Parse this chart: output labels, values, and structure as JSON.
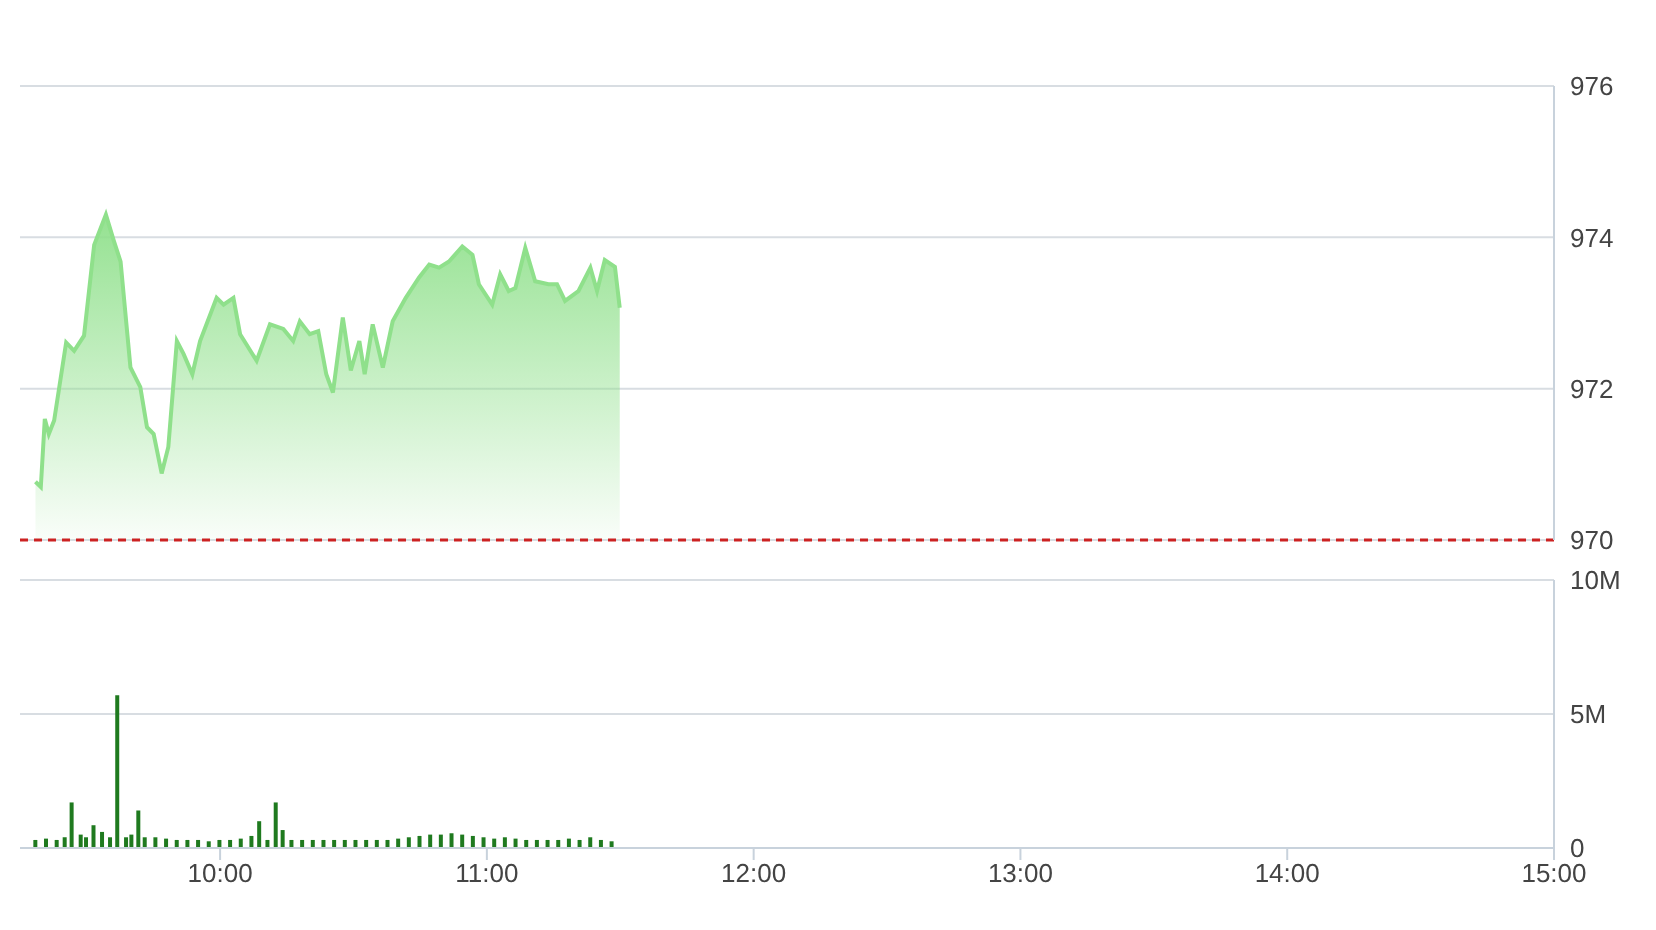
{
  "chart_data": [
    {
      "type": "area",
      "x": [
        9.308,
        9.328,
        9.343,
        9.358,
        9.378,
        9.423,
        9.453,
        9.49,
        9.528,
        9.572,
        9.602,
        9.627,
        9.664,
        9.701,
        9.726,
        9.751,
        9.781,
        9.806,
        9.838,
        9.863,
        9.896,
        9.925,
        9.987,
        10.013,
        10.05,
        10.075,
        10.137,
        10.187,
        10.237,
        10.274,
        10.299,
        10.336,
        10.368,
        10.398,
        10.423,
        10.46,
        10.49,
        10.522,
        10.542,
        10.572,
        10.61,
        10.647,
        10.696,
        10.746,
        10.784,
        10.821,
        10.858,
        10.908,
        10.946,
        10.97,
        11.02,
        11.05,
        11.082,
        11.107,
        11.144,
        11.181,
        11.231,
        11.263,
        11.293,
        11.343,
        11.388,
        11.413,
        11.442,
        11.48,
        11.498
      ],
      "series": [
        {
          "color": "#8fe08b",
          "values": [
            970.77,
            970.7,
            971.6,
            971.4,
            971.58,
            972.61,
            972.5,
            972.7,
            973.9,
            974.3,
            973.95,
            973.68,
            972.28,
            972.02,
            971.49,
            971.4,
            970.88,
            971.23,
            972.63,
            972.46,
            972.19,
            972.63,
            973.2,
            973.11,
            973.2,
            972.72,
            972.37,
            972.85,
            972.79,
            972.63,
            972.89,
            972.72,
            972.76,
            972.19,
            971.95,
            972.94,
            972.24,
            972.63,
            972.19,
            972.85,
            972.28,
            972.89,
            973.2,
            973.47,
            973.64,
            973.6,
            973.68,
            973.88,
            973.77,
            973.38,
            973.11,
            973.51,
            973.29,
            973.33,
            973.86,
            973.42,
            973.38,
            973.38,
            973.16,
            973.29,
            973.6,
            973.29,
            973.7,
            973.61,
            973.07
          ]
        }
      ],
      "xlim": [
        9.25,
        15
      ],
      "ylim": [
        970,
        976
      ],
      "yticks": [
        970,
        972,
        974,
        976
      ],
      "grid": "y",
      "tick_labels": "y",
      "ref_lines": [
        {
          "axis": "y",
          "value": 970,
          "color": "#cc2222",
          "line_style": "dashed"
        }
      ]
    },
    {
      "type": "bar",
      "x": [
        9.31,
        9.35,
        9.39,
        9.42,
        9.446,
        9.48,
        9.5,
        9.528,
        9.56,
        9.59,
        9.617,
        9.65,
        9.67,
        9.696,
        9.72,
        9.76,
        9.8,
        9.84,
        9.88,
        9.92,
        9.96,
        10.0,
        10.04,
        10.08,
        10.12,
        10.149,
        10.18,
        10.211,
        10.237,
        10.27,
        10.31,
        10.35,
        10.39,
        10.43,
        10.47,
        10.51,
        10.55,
        10.59,
        10.63,
        10.67,
        10.71,
        10.75,
        10.79,
        10.83,
        10.87,
        10.91,
        10.95,
        10.99,
        11.03,
        11.07,
        11.11,
        11.15,
        11.19,
        11.23,
        11.27,
        11.31,
        11.35,
        11.39,
        11.43,
        11.47
      ],
      "series": [
        {
          "color": "#1f7a1f",
          "values": [
            0.3,
            0.35,
            0.3,
            0.4,
            1.7,
            0.5,
            0.4,
            0.85,
            0.6,
            0.4,
            5.7,
            0.4,
            0.5,
            1.4,
            0.4,
            0.4,
            0.35,
            0.3,
            0.3,
            0.3,
            0.25,
            0.3,
            0.3,
            0.35,
            0.45,
            1.0,
            0.3,
            1.7,
            0.67,
            0.3,
            0.3,
            0.3,
            0.3,
            0.3,
            0.3,
            0.3,
            0.3,
            0.3,
            0.3,
            0.35,
            0.4,
            0.45,
            0.5,
            0.5,
            0.55,
            0.5,
            0.45,
            0.4,
            0.35,
            0.4,
            0.35,
            0.3,
            0.3,
            0.3,
            0.3,
            0.35,
            0.3,
            0.4,
            0.3,
            0.25
          ]
        }
      ],
      "xlim": [
        9.25,
        15
      ],
      "xticks": [
        {
          "value": 10,
          "label": "10:00"
        },
        {
          "value": 11,
          "label": "11:00"
        },
        {
          "value": 12,
          "label": "12:00"
        },
        {
          "value": 13,
          "label": "13:00"
        },
        {
          "value": 14,
          "label": "14:00"
        },
        {
          "value": 15,
          "label": "15:00"
        }
      ],
      "ylim": [
        0,
        10
      ],
      "yticks": [
        0,
        {
          "value": 5,
          "label": "5M"
        },
        {
          "value": 10,
          "label": "10M"
        }
      ],
      "grid": "y"
    }
  ]
}
